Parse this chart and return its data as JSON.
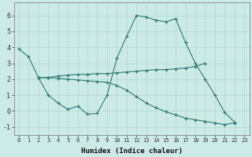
{
  "xlabel": "Humidex (Indice chaleur)",
  "x_ticks": [
    0,
    1,
    2,
    3,
    4,
    5,
    6,
    7,
    8,
    9,
    10,
    11,
    12,
    13,
    14,
    15,
    16,
    17,
    18,
    19,
    20,
    21,
    22,
    23
  ],
  "ylim": [
    -1.5,
    6.8
  ],
  "xlim": [
    -0.5,
    23.5
  ],
  "yticks": [
    -1,
    0,
    1,
    2,
    3,
    4,
    5,
    6
  ],
  "bg_color": "#cceae6",
  "line_color": "#2d7a72",
  "grid_color": "#aed8d2",
  "line1_x": [
    0,
    1,
    2,
    3,
    4,
    5,
    6,
    7,
    8,
    9,
    10,
    11,
    12,
    13,
    14,
    15,
    16,
    17,
    18,
    19,
    20,
    21,
    22
  ],
  "line1_y": [
    3.9,
    3.4,
    2.1,
    1.0,
    0.5,
    0.1,
    0.3,
    -0.2,
    -0.15,
    1.0,
    3.3,
    4.7,
    6.0,
    5.9,
    5.7,
    5.6,
    5.8,
    4.3,
    3.0,
    2.0,
    1.0,
    -0.1,
    -0.7
  ],
  "line2_x": [
    2,
    3,
    4,
    5,
    6,
    7,
    8,
    9,
    10,
    11,
    12,
    13,
    14,
    15,
    16,
    17,
    18,
    19
  ],
  "line2_y": [
    2.1,
    2.1,
    2.2,
    2.25,
    2.3,
    2.3,
    2.35,
    2.35,
    2.4,
    2.45,
    2.5,
    2.55,
    2.6,
    2.6,
    2.65,
    2.7,
    2.8,
    3.0
  ],
  "line3_x": [
    2,
    3,
    4,
    5,
    6,
    7,
    8,
    9,
    10,
    11,
    12,
    13,
    14,
    15,
    16,
    17,
    18,
    19,
    20,
    21,
    22
  ],
  "line3_y": [
    2.1,
    2.1,
    2.05,
    2.0,
    1.95,
    1.9,
    1.85,
    1.8,
    1.6,
    1.3,
    0.9,
    0.5,
    0.2,
    -0.05,
    -0.25,
    -0.45,
    -0.55,
    -0.65,
    -0.75,
    -0.85,
    -0.75
  ]
}
